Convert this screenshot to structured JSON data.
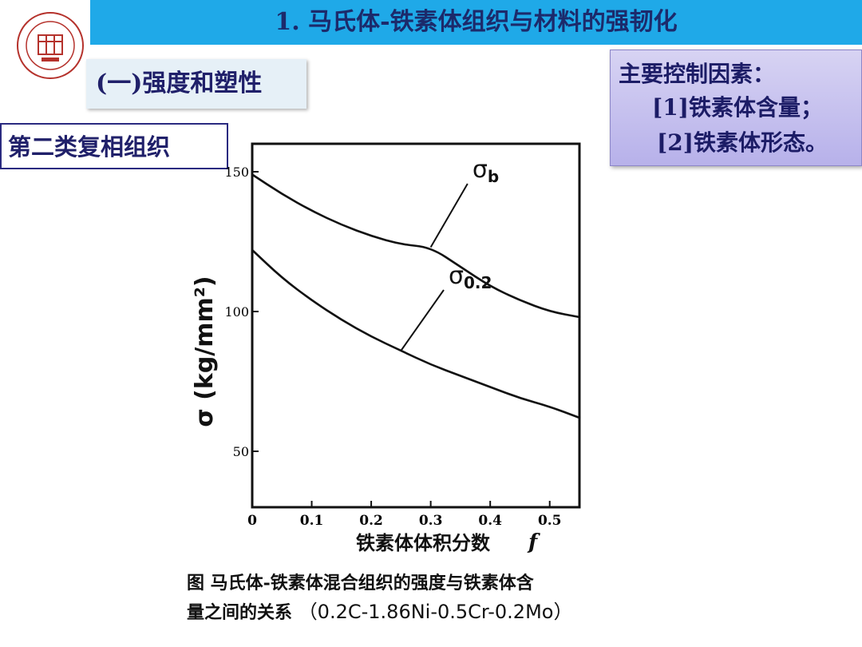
{
  "header": {
    "title": "1. 马氏体-铁素体组织与材料的强韧化"
  },
  "section": {
    "label": "(一)强度和塑性"
  },
  "structure_type": {
    "label": "第二类复相组织"
  },
  "factors": {
    "heading": "主要控制因素：",
    "items": [
      "[1]铁素体含量；",
      "[2]铁素体形态。"
    ]
  },
  "caption": {
    "line1": "图 马氏体-铁素体混合组织的强度与铁素体含",
    "line2_prefix": "量之间的关系",
    "line2_formula": "（0.2C-1.86Ni-0.5Cr-0.2Mo）"
  },
  "colors": {
    "title_bar": "#1fa9e8",
    "title_text": "#1c2a6b",
    "accent": "#20206a",
    "logo_red": "#b5322c"
  },
  "chart_data": {
    "type": "line",
    "xlabel": "铁素体体积分数",
    "xlabel_symbol": "f",
    "ylabel": "σ (kg/mm²)",
    "xlim": [
      0,
      0.55
    ],
    "ylim": [
      30,
      160
    ],
    "x_ticks": [
      "0",
      "0.1",
      "0.2",
      "0.3",
      "0.4",
      "0.5"
    ],
    "x_tick_values": [
      0,
      0.1,
      0.2,
      0.3,
      0.4,
      0.5
    ],
    "y_ticks": [
      "150",
      "100",
      "50"
    ],
    "y_tick_values": [
      150,
      100,
      50
    ],
    "series": [
      {
        "name": "σb",
        "x": [
          0,
          0.05,
          0.1,
          0.15,
          0.2,
          0.25,
          0.3,
          0.35,
          0.4,
          0.45,
          0.5,
          0.55
        ],
        "y": [
          149,
          142,
          136,
          131,
          127,
          124,
          123,
          116,
          109,
          104,
          100,
          98
        ]
      },
      {
        "name": "σ0.2",
        "x": [
          0,
          0.05,
          0.1,
          0.15,
          0.2,
          0.25,
          0.3,
          0.35,
          0.4,
          0.45,
          0.5,
          0.55
        ],
        "y": [
          122,
          112,
          104,
          97,
          91,
          86,
          81,
          77,
          73,
          69,
          66,
          62
        ]
      }
    ]
  }
}
